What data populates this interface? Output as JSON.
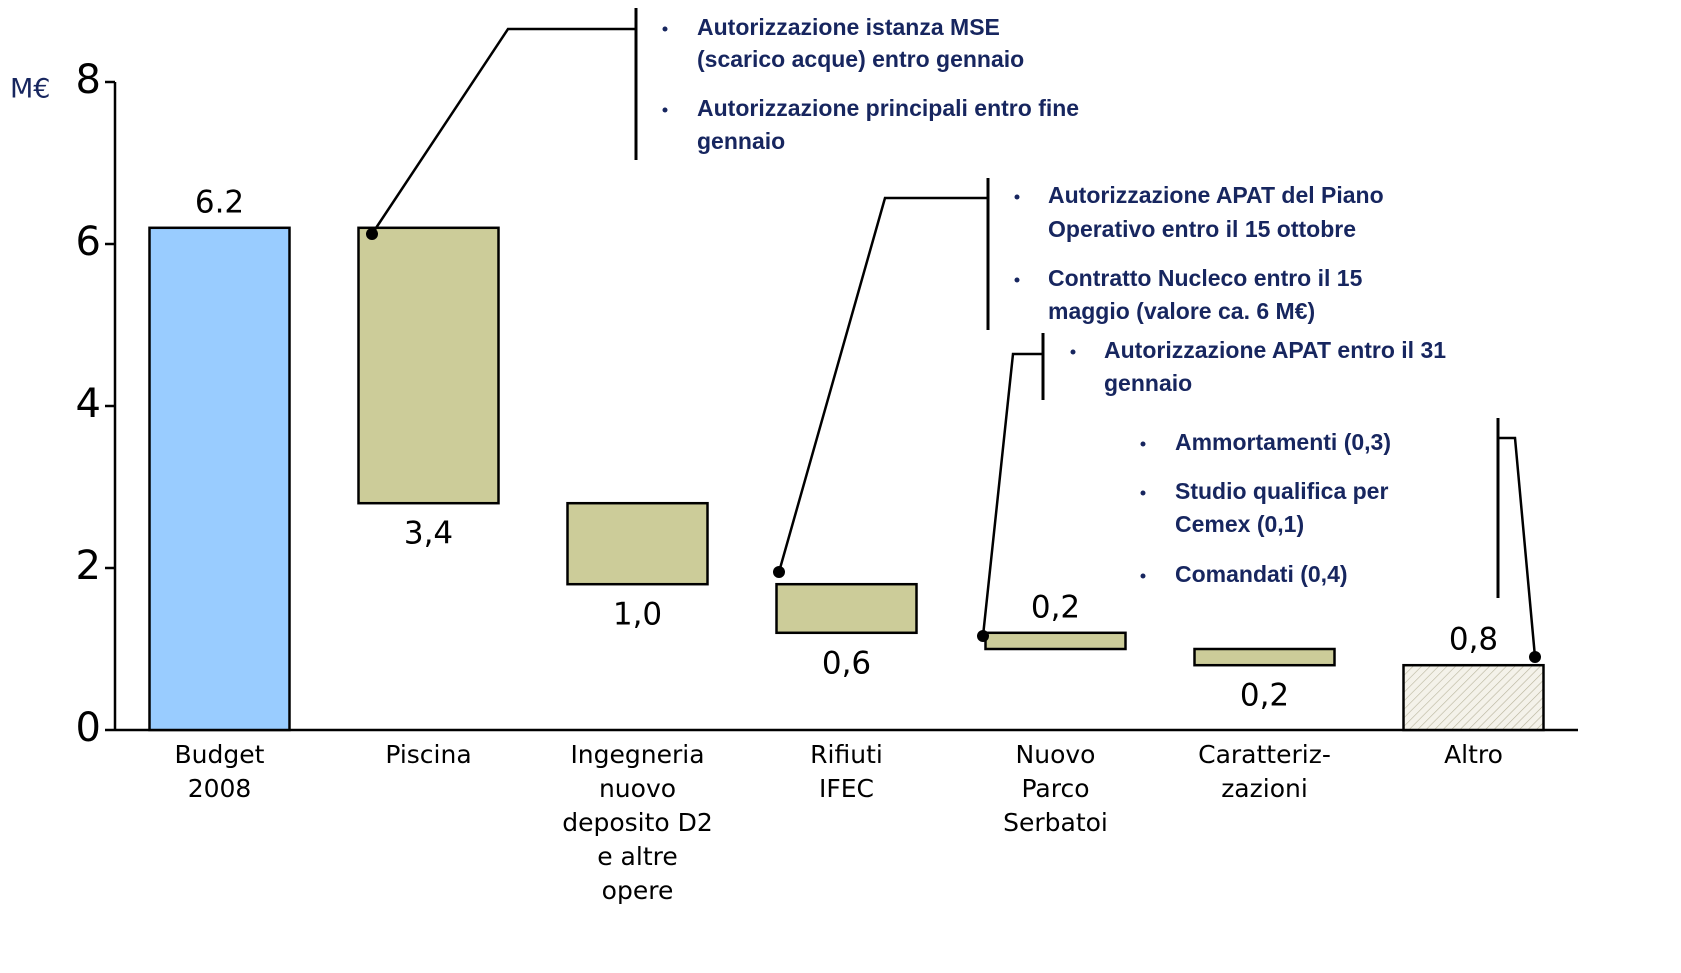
{
  "chart_data": {
    "type": "waterfall",
    "y_label": "M€",
    "categories": [
      [
        "Budget",
        "2008"
      ],
      [
        "Piscina"
      ],
      [
        "Ingegneria",
        "nuovo",
        "deposito D2",
        "e altre",
        "opere"
      ],
      [
        "Rifiuti",
        "IFEC"
      ],
      [
        "Nuovo",
        "Parco",
        "Serbatoi"
      ],
      [
        "Caratteriz-",
        "zazioni"
      ],
      [
        "Altro"
      ]
    ],
    "measure": [
      "absolute",
      "relative",
      "relative",
      "relative",
      "relative",
      "relative",
      "total"
    ],
    "values": [
      6.2,
      -3.4,
      -1.0,
      -0.6,
      -0.2,
      -0.2,
      0.8
    ],
    "value_labels": [
      "6.2",
      "3,4",
      "1,0",
      "0,6",
      "0,2",
      "0,2",
      "0,8"
    ],
    "colors": [
      "#99ccff",
      "#cccc99",
      "#cccc99",
      "#cccc99",
      "#cccc99",
      "#cccc99",
      "hatched"
    ],
    "ylim": [
      0,
      8
    ],
    "yticks": [
      0,
      2,
      4,
      6,
      8
    ],
    "annotations": [
      {
        "items": [
          [
            "Autorizzazione istanza MSE",
            "(scarico acque) entro  gennaio"
          ],
          [
            "Autorizzazione principali entro fine",
            "gennaio"
          ]
        ]
      },
      {
        "items": [
          [
            "Autorizzazione APAT del Piano",
            "Operativo entro il 15 ottobre"
          ],
          [
            "Contratto Nucleco entro il 15",
            "maggio (valore ca. 6 M€)"
          ]
        ]
      },
      {
        "items": [
          [
            "Autorizzazione APAT entro il 31",
            "gennaio"
          ]
        ]
      },
      {
        "items": [
          [
            "Ammortamenti (0,3)"
          ],
          [
            "Studio qualifica per",
            "Cemex (0,1)"
          ],
          [
            "Comandati (0,4)"
          ]
        ]
      }
    ]
  }
}
